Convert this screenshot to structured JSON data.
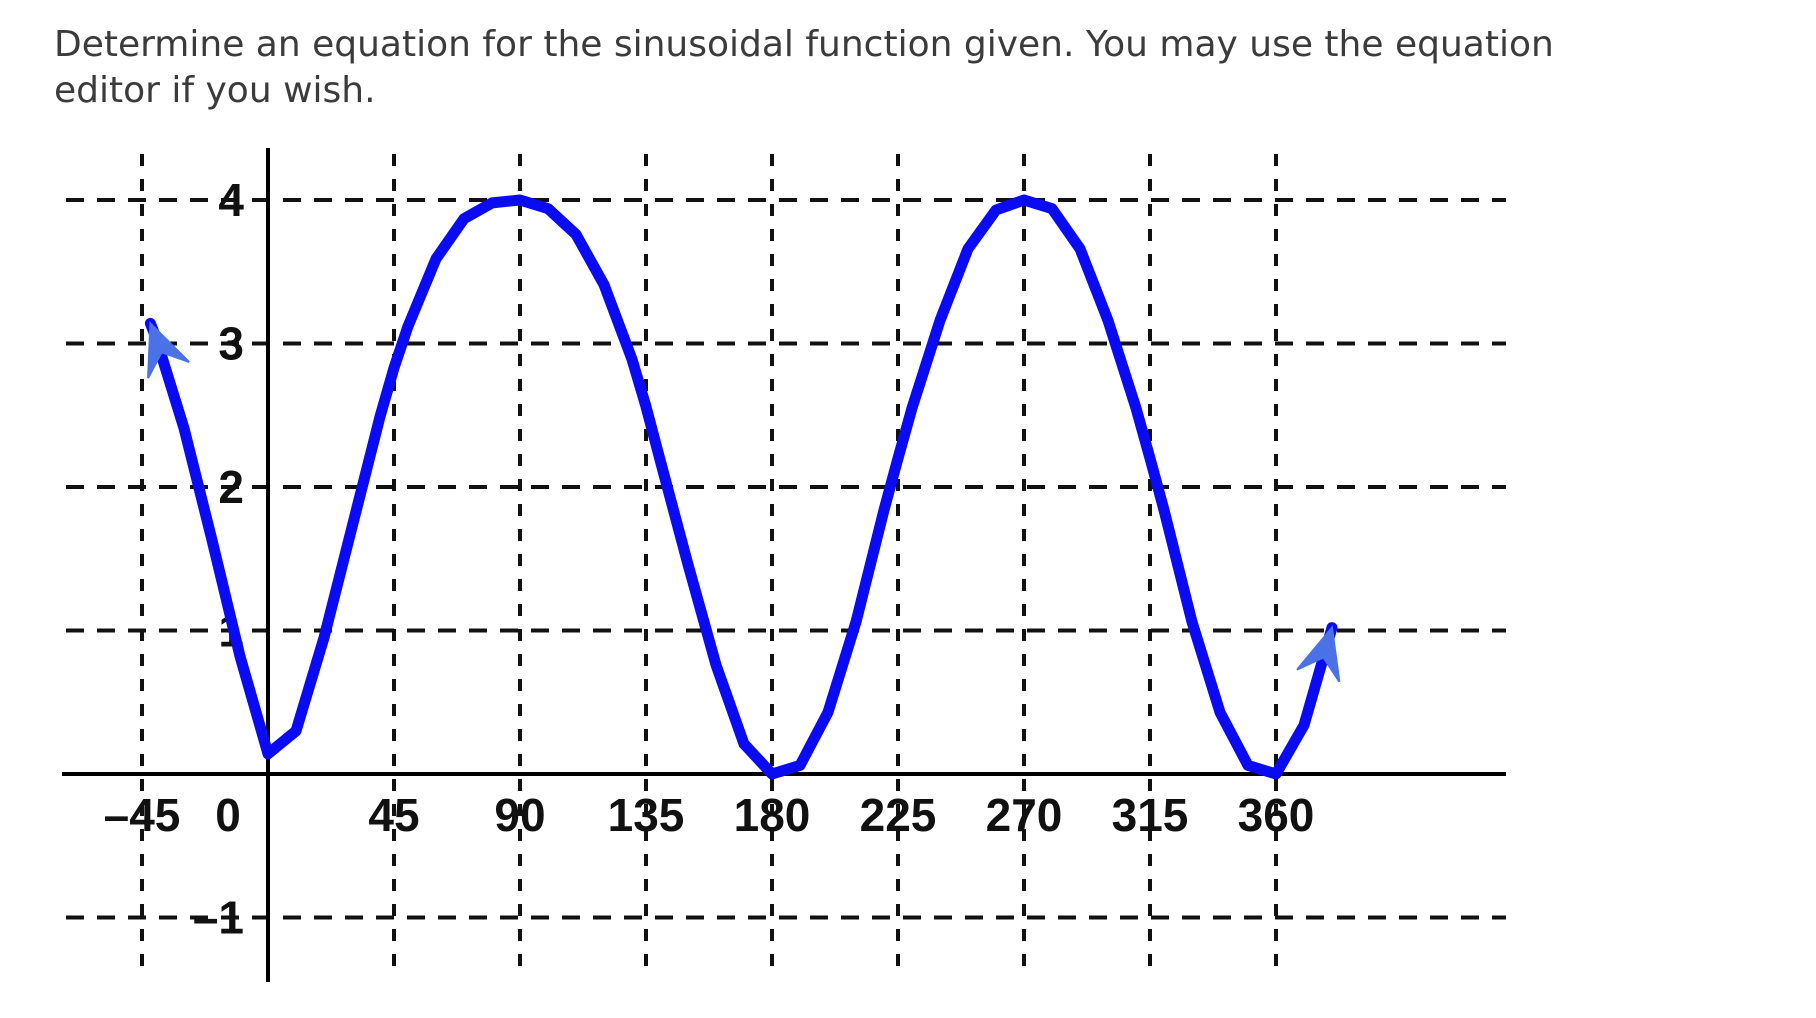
{
  "question": {
    "prompt_line1": "Determine an equation for the sinusoidal function given. You may use the equation",
    "prompt_line2": "editor if you wish."
  },
  "chart_data": {
    "type": "line",
    "title": "",
    "xlabel": "",
    "ylabel": "",
    "xlim": [
      -45,
      382
    ],
    "ylim": [
      -1.4,
      4.6
    ],
    "grid": true,
    "x_ticks": [
      -45,
      0,
      45,
      90,
      135,
      180,
      225,
      270,
      315,
      360
    ],
    "x_tick_labels": [
      "–45",
      "0",
      "45",
      "90",
      "135",
      "180",
      "225",
      "270",
      "315",
      "360"
    ],
    "y_ticks": [
      4,
      3,
      2,
      1,
      -1
    ],
    "y_tick_labels": [
      "4",
      "3",
      "2",
      "1",
      "–1"
    ],
    "series": [
      {
        "color": "#0a0af5",
        "arrow_color": "#4a72e6",
        "x": [
          -42,
          -40,
          -30,
          -20,
          -10,
          0,
          10,
          20,
          30,
          40,
          45,
          50,
          60,
          70,
          80,
          90,
          100,
          110,
          120,
          130,
          135,
          140,
          150,
          160,
          170,
          180,
          190,
          200,
          210,
          220,
          225,
          230,
          240,
          250,
          260,
          270,
          280,
          290,
          300,
          310,
          315,
          320,
          330,
          340,
          350,
          360,
          370,
          380
        ],
        "y": [
          3.14,
          3.04,
          2.41,
          1.63,
          0.82,
          0.14,
          0.3,
          0.95,
          1.72,
          2.49,
          2.83,
          3.12,
          3.59,
          3.87,
          3.98,
          4.0,
          3.94,
          3.76,
          3.41,
          2.89,
          2.56,
          2.19,
          1.46,
          0.76,
          0.21,
          0.0,
          0.06,
          0.43,
          1.06,
          1.84,
          2.2,
          2.55,
          3.16,
          3.66,
          3.93,
          4.0,
          3.94,
          3.66,
          3.16,
          2.55,
          2.2,
          1.84,
          1.06,
          0.43,
          0.06,
          0.0,
          0.34,
          1.02
        ]
      }
    ]
  }
}
